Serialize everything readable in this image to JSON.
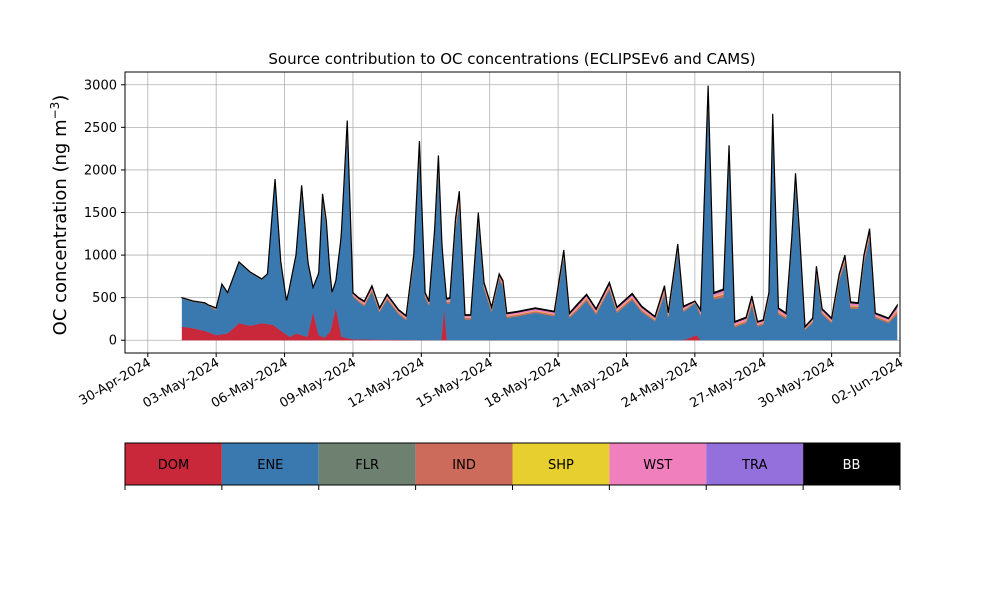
{
  "chart_data": {
    "type": "area",
    "stacked": true,
    "title": "Source contribution to OC concentrations (ECLIPSEv6 and CAMS)",
    "ylabel_main": "OC concentration (ng m",
    "ylabel_sup": "−3",
    "ylabel_close": ")",
    "xlabel": "",
    "x_start": "2024-04-29",
    "x_end": "2024-06-02",
    "ylim": [
      -150,
      3150
    ],
    "yticks": [
      0,
      500,
      1000,
      1500,
      2000,
      2500,
      3000
    ],
    "xticks": [
      {
        "date": "2024-04-30",
        "label": "30-Apr-2024"
      },
      {
        "date": "2024-05-03",
        "label": "03-May-2024"
      },
      {
        "date": "2024-05-06",
        "label": "06-May-2024"
      },
      {
        "date": "2024-05-09",
        "label": "09-May-2024"
      },
      {
        "date": "2024-05-12",
        "label": "12-May-2024"
      },
      {
        "date": "2024-05-15",
        "label": "15-May-2024"
      },
      {
        "date": "2024-05-18",
        "label": "18-May-2024"
      },
      {
        "date": "2024-05-21",
        "label": "21-May-2024"
      },
      {
        "date": "2024-05-24",
        "label": "24-May-2024"
      },
      {
        "date": "2024-05-27",
        "label": "27-May-2024"
      },
      {
        "date": "2024-05-30",
        "label": "30-May-2024"
      },
      {
        "date": "2024-06-02",
        "label": "02-Jun-2024"
      }
    ],
    "grid": true,
    "series_colors": {
      "DOM": "#c8283a",
      "ENE": "#3a78b0",
      "FLR": "#6e8070",
      "IND": "#cc6a5c",
      "SHP": "#e6cf2e",
      "WST": "#f07fbe",
      "TRA": "#9370db",
      "BB": "#000000"
    },
    "legend": [
      {
        "name": "DOM",
        "color": "#c8283a",
        "text_color": "#000000"
      },
      {
        "name": "ENE",
        "color": "#3a78b0",
        "text_color": "#000000"
      },
      {
        "name": "FLR",
        "color": "#6e8070",
        "text_color": "#000000"
      },
      {
        "name": "IND",
        "color": "#cc6a5c",
        "text_color": "#000000"
      },
      {
        "name": "SHP",
        "color": "#e6cf2e",
        "text_color": "#000000"
      },
      {
        "name": "WST",
        "color": "#f07fbe",
        "text_color": "#000000"
      },
      {
        "name": "TRA",
        "color": "#9370db",
        "text_color": "#000000"
      },
      {
        "name": "BB",
        "color": "#000000",
        "text_color": "#ffffff"
      }
    ],
    "legend_placement": "below",
    "dom_points": [
      [
        "2024-05-01T12:00",
        160
      ],
      [
        "2024-05-02T00:00",
        140
      ],
      [
        "2024-05-02T12:00",
        110
      ],
      [
        "2024-05-03T00:00",
        60
      ],
      [
        "2024-05-03T12:00",
        80
      ],
      [
        "2024-05-04T00:00",
        200
      ],
      [
        "2024-05-04T12:00",
        170
      ],
      [
        "2024-05-05T00:00",
        200
      ],
      [
        "2024-05-05T12:00",
        180
      ],
      [
        "2024-05-06T00:00",
        80
      ],
      [
        "2024-05-06T06:00",
        40
      ],
      [
        "2024-05-06T12:00",
        80
      ],
      [
        "2024-05-07T00:00",
        40
      ],
      [
        "2024-05-07T06:00",
        330
      ],
      [
        "2024-05-07T12:00",
        60
      ],
      [
        "2024-05-07T18:00",
        30
      ],
      [
        "2024-05-08T00:00",
        100
      ],
      [
        "2024-05-08T06:00",
        380
      ],
      [
        "2024-05-08T12:00",
        40
      ],
      [
        "2024-05-09T00:00",
        10
      ],
      [
        "2024-05-12T12:00",
        0
      ],
      [
        "2024-05-12T21:00",
        0
      ],
      [
        "2024-05-13T00:00",
        380
      ],
      [
        "2024-05-13T03:00",
        0
      ],
      [
        "2024-05-23T12:00",
        0
      ],
      [
        "2024-05-24T02:00",
        60
      ],
      [
        "2024-05-24T06:00",
        0
      ],
      [
        "2024-06-01T21:00",
        0
      ]
    ],
    "ene_points": [
      [
        "2024-05-01T12:00",
        330
      ],
      [
        "2024-05-02T00:00",
        310
      ],
      [
        "2024-05-02T12:00",
        320
      ],
      [
        "2024-05-03T00:00",
        290
      ],
      [
        "2024-05-03T06:00",
        580
      ],
      [
        "2024-05-03T12:00",
        470
      ],
      [
        "2024-05-04T00:00",
        710
      ],
      [
        "2024-05-04T12:00",
        620
      ],
      [
        "2024-05-05T00:00",
        510
      ],
      [
        "2024-05-05T06:00",
        580
      ],
      [
        "2024-05-05T14:00",
        1720
      ],
      [
        "2024-05-05T20:00",
        800
      ],
      [
        "2024-05-06T02:00",
        390
      ],
      [
        "2024-05-06T12:00",
        900
      ],
      [
        "2024-05-06T18:00",
        1680
      ],
      [
        "2024-05-07T00:00",
        900
      ],
      [
        "2024-05-07T06:00",
        280
      ],
      [
        "2024-05-07T12:00",
        720
      ],
      [
        "2024-05-07T16:00",
        1600
      ],
      [
        "2024-05-07T20:00",
        1280
      ],
      [
        "2024-05-08T02:00",
        360
      ],
      [
        "2024-05-08T06:00",
        310
      ],
      [
        "2024-05-08T12:00",
        1200
      ],
      [
        "2024-05-08T18:00",
        2400
      ],
      [
        "2024-05-09T00:00",
        500
      ],
      [
        "2024-05-09T06:00",
        440
      ],
      [
        "2024-05-09T12:00",
        390
      ],
      [
        "2024-05-09T20:00",
        560
      ],
      [
        "2024-05-10T04:00",
        320
      ],
      [
        "2024-05-10T12:00",
        470
      ],
      [
        "2024-05-11T00:00",
        300
      ],
      [
        "2024-05-11T08:00",
        230
      ],
      [
        "2024-05-11T16:00",
        900
      ],
      [
        "2024-05-11T22:00",
        2200
      ],
      [
        "2024-05-12T04:00",
        500
      ],
      [
        "2024-05-12T08:00",
        400
      ],
      [
        "2024-05-12T14:00",
        1200
      ],
      [
        "2024-05-12T18:00",
        2000
      ],
      [
        "2024-05-13T00:00",
        420
      ],
      [
        "2024-05-13T06:00",
        430
      ],
      [
        "2024-05-13T12:00",
        1300
      ],
      [
        "2024-05-13T16:00",
        1600
      ],
      [
        "2024-05-13T22:00",
        240
      ],
      [
        "2024-05-14T04:00",
        240
      ],
      [
        "2024-05-14T12:00",
        1400
      ],
      [
        "2024-05-14T18:00",
        600
      ],
      [
        "2024-05-15T02:00",
        330
      ],
      [
        "2024-05-15T10:00",
        720
      ],
      [
        "2024-05-15T14:00",
        620
      ],
      [
        "2024-05-15T18:00",
        260
      ],
      [
        "2024-05-16T06:00",
        280
      ],
      [
        "2024-05-17T00:00",
        320
      ],
      [
        "2024-05-17T20:00",
        280
      ],
      [
        "2024-05-18T06:00",
        980
      ],
      [
        "2024-05-18T12:00",
        260
      ],
      [
        "2024-05-18T20:00",
        340
      ],
      [
        "2024-05-19T06:00",
        460
      ],
      [
        "2024-05-19T16:00",
        300
      ],
      [
        "2024-05-20T06:00",
        590
      ],
      [
        "2024-05-20T14:00",
        320
      ],
      [
        "2024-05-21T06:00",
        470
      ],
      [
        "2024-05-21T16:00",
        330
      ],
      [
        "2024-05-22T06:00",
        220
      ],
      [
        "2024-05-22T16:00",
        530
      ],
      [
        "2024-05-22T20:00",
        260
      ],
      [
        "2024-05-23T06:00",
        1060
      ],
      [
        "2024-05-23T12:00",
        330
      ],
      [
        "2024-05-24T00:00",
        380
      ],
      [
        "2024-05-24T06:00",
        280
      ],
      [
        "2024-05-24T14:00",
        2850
      ],
      [
        "2024-05-24T20:00",
        480
      ],
      [
        "2024-05-25T06:00",
        500
      ],
      [
        "2024-05-25T12:00",
        2180
      ],
      [
        "2024-05-25T18:00",
        150
      ],
      [
        "2024-05-26T06:00",
        200
      ],
      [
        "2024-05-26T12:00",
        400
      ],
      [
        "2024-05-26T18:00",
        160
      ],
      [
        "2024-05-27T00:00",
        180
      ],
      [
        "2024-05-27T06:00",
        500
      ],
      [
        "2024-05-27T10:00",
        2550
      ],
      [
        "2024-05-27T16:00",
        300
      ],
      [
        "2024-05-28T00:00",
        250
      ],
      [
        "2024-05-28T06:00",
        1100
      ],
      [
        "2024-05-28T10:00",
        1850
      ],
      [
        "2024-05-28T14:00",
        1200
      ],
      [
        "2024-05-28T20:00",
        120
      ],
      [
        "2024-05-29T04:00",
        200
      ],
      [
        "2024-05-29T08:00",
        780
      ],
      [
        "2024-05-29T14:00",
        300
      ],
      [
        "2024-05-30T00:00",
        200
      ],
      [
        "2024-05-30T08:00",
        700
      ],
      [
        "2024-05-30T14:00",
        900
      ],
      [
        "2024-05-30T20:00",
        370
      ],
      [
        "2024-05-31T04:00",
        370
      ],
      [
        "2024-05-31T10:00",
        900
      ],
      [
        "2024-05-31T16:00",
        1200
      ],
      [
        "2024-05-31T22:00",
        260
      ],
      [
        "2024-06-01T12:00",
        200
      ],
      [
        "2024-06-01T21:00",
        300
      ]
    ],
    "total_points": [
      [
        "2024-05-01T12:00",
        460
      ],
      [
        "2024-05-02T00:00",
        410
      ],
      [
        "2024-05-02T06:00",
        380
      ],
      [
        "2024-05-02T12:00",
        430
      ],
      [
        "2024-05-03T00:00",
        380
      ],
      [
        "2024-05-03T06:00",
        650
      ],
      [
        "2024-05-03T12:00",
        560
      ],
      [
        "2024-05-04T00:00",
        820
      ],
      [
        "2024-05-04T12:00",
        700
      ],
      [
        "2024-05-05T00:00",
        590
      ],
      [
        "2024-05-05T06:00",
        660
      ],
      [
        "2024-05-05T14:00",
        1850
      ],
      [
        "2024-05-05T20:00",
        900
      ],
      [
        "2024-05-06T02:00",
        440
      ],
      [
        "2024-05-06T12:00",
        1000
      ],
      [
        "2024-05-06T18:00",
        1820
      ],
      [
        "2024-05-07T00:00",
        1000
      ],
      [
        "2024-05-07T06:00",
        330
      ],
      [
        "2024-05-07T12:00",
        800
      ],
      [
        "2024-05-07T16:00",
        1720
      ],
      [
        "2024-05-07T20:00",
        1400
      ],
      [
        "2024-05-08T02:00",
        420
      ],
      [
        "2024-05-08T06:00",
        360
      ],
      [
        "2024-05-08T12:00",
        1300
      ],
      [
        "2024-05-08T18:00",
        2580
      ],
      [
        "2024-05-09T00:00",
        560
      ],
      [
        "2024-05-09T06:00",
        500
      ],
      [
        "2024-05-09T12:00",
        460
      ],
      [
        "2024-05-09T20:00",
        640
      ],
      [
        "2024-05-10T04:00",
        380
      ],
      [
        "2024-05-10T12:00",
        540
      ],
      [
        "2024-05-11T00:00",
        360
      ],
      [
        "2024-05-11T08:00",
        290
      ],
      [
        "2024-05-11T16:00",
        1000
      ],
      [
        "2024-05-11T22:00",
        2340
      ],
      [
        "2024-05-12T04:00",
        560
      ],
      [
        "2024-05-12T08:00",
        460
      ],
      [
        "2024-05-12T14:00",
        1300
      ],
      [
        "2024-05-12T18:00",
        2170
      ],
      [
        "2024-05-13T00:00",
        480
      ],
      [
        "2024-05-13T06:00",
        500
      ],
      [
        "2024-05-13T12:00",
        1430
      ],
      [
        "2024-05-13T16:00",
        1750
      ],
      [
        "2024-05-13T22:00",
        300
      ],
      [
        "2024-05-14T04:00",
        300
      ],
      [
        "2024-05-14T12:00",
        1500
      ],
      [
        "2024-05-14T18:00",
        680
      ],
      [
        "2024-05-15T02:00",
        390
      ],
      [
        "2024-05-15T10:00",
        780
      ],
      [
        "2024-05-15T14:00",
        700
      ],
      [
        "2024-05-15T18:00",
        320
      ],
      [
        "2024-05-16T06:00",
        340
      ],
      [
        "2024-05-17T00:00",
        380
      ],
      [
        "2024-05-17T20:00",
        340
      ],
      [
        "2024-05-18T06:00",
        1060
      ],
      [
        "2024-05-18T12:00",
        320
      ],
      [
        "2024-05-18T20:00",
        420
      ],
      [
        "2024-05-19T06:00",
        540
      ],
      [
        "2024-05-19T16:00",
        370
      ],
      [
        "2024-05-20T06:00",
        680
      ],
      [
        "2024-05-20T14:00",
        390
      ],
      [
        "2024-05-21T06:00",
        550
      ],
      [
        "2024-05-21T16:00",
        400
      ],
      [
        "2024-05-22T06:00",
        280
      ],
      [
        "2024-05-22T16:00",
        640
      ],
      [
        "2024-05-22T20:00",
        330
      ],
      [
        "2024-05-23T06:00",
        1130
      ],
      [
        "2024-05-23T12:00",
        400
      ],
      [
        "2024-05-24T00:00",
        460
      ],
      [
        "2024-05-24T06:00",
        360
      ],
      [
        "2024-05-24T14:00",
        2990
      ],
      [
        "2024-05-24T20:00",
        560
      ],
      [
        "2024-05-25T06:00",
        600
      ],
      [
        "2024-05-25T12:00",
        2290
      ],
      [
        "2024-05-25T18:00",
        220
      ],
      [
        "2024-05-26T06:00",
        270
      ],
      [
        "2024-05-26T12:00",
        520
      ],
      [
        "2024-05-26T18:00",
        220
      ],
      [
        "2024-05-27T00:00",
        240
      ],
      [
        "2024-05-27T06:00",
        560
      ],
      [
        "2024-05-27T10:00",
        2660
      ],
      [
        "2024-05-27T16:00",
        380
      ],
      [
        "2024-05-28T00:00",
        320
      ],
      [
        "2024-05-28T06:00",
        1200
      ],
      [
        "2024-05-28T10:00",
        1960
      ],
      [
        "2024-05-28T14:00",
        1300
      ],
      [
        "2024-05-28T20:00",
        160
      ],
      [
        "2024-05-29T04:00",
        260
      ],
      [
        "2024-05-29T08:00",
        870
      ],
      [
        "2024-05-29T14:00",
        370
      ],
      [
        "2024-05-30T00:00",
        260
      ],
      [
        "2024-05-30T08:00",
        780
      ],
      [
        "2024-05-30T14:00",
        1000
      ],
      [
        "2024-05-30T20:00",
        450
      ],
      [
        "2024-05-31T04:00",
        440
      ],
      [
        "2024-05-31T10:00",
        1000
      ],
      [
        "2024-05-31T16:00",
        1310
      ],
      [
        "2024-05-31T22:00",
        320
      ],
      [
        "2024-06-01T12:00",
        260
      ],
      [
        "2024-06-01T21:00",
        410
      ]
    ]
  }
}
